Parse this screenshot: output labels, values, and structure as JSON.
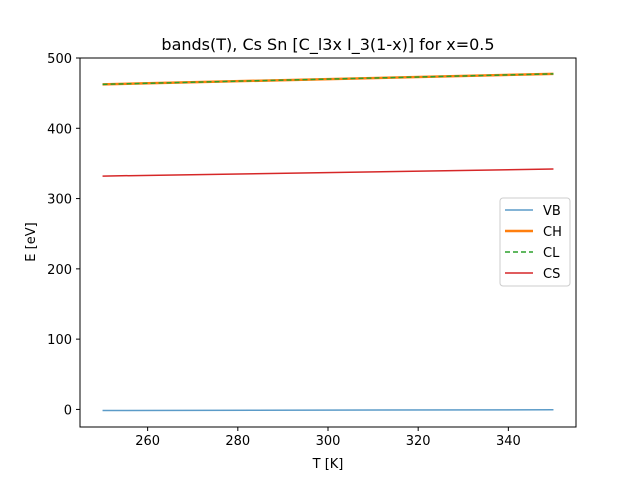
{
  "chart_data": {
    "type": "line",
    "title": "bands(T), Cs Sn [C_l3x I_3(1-x)] for x=0.5",
    "xlabel": "T [K]",
    "ylabel": "E [eV]",
    "xlim": [
      245,
      355
    ],
    "ylim": [
      -25,
      500
    ],
    "xticks": [
      260,
      280,
      300,
      320,
      340
    ],
    "yticks": [
      0,
      100,
      200,
      300,
      400,
      500
    ],
    "grid": false,
    "legend_position": "center-right",
    "series": [
      {
        "name": "VB",
        "color": "#5b9bc8",
        "dash": "",
        "width": 1.5,
        "x": [
          250,
          350
        ],
        "y": [
          -1.5,
          -0.5
        ]
      },
      {
        "name": "CH",
        "color": "#ff7f0e",
        "dash": "",
        "width": 2.5,
        "x": [
          250,
          350
        ],
        "y": [
          462.5,
          477.5
        ]
      },
      {
        "name": "CL",
        "color": "#2ca02c",
        "dash": "5,3",
        "width": 1.5,
        "x": [
          250,
          350
        ],
        "y": [
          462.5,
          477.5
        ]
      },
      {
        "name": "CS",
        "color": "#d62728",
        "dash": "",
        "width": 1.5,
        "x": [
          250,
          350
        ],
        "y": [
          332,
          342
        ]
      }
    ]
  }
}
